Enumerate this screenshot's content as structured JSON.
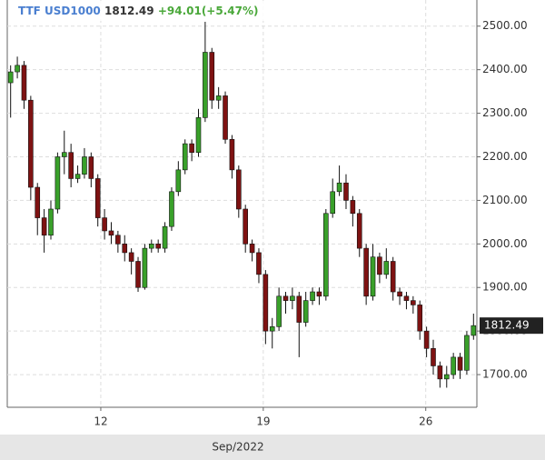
{
  "chart_data": {
    "type": "candlestick",
    "title": "TTF USD1000",
    "change": "+94.01(+5.47%)",
    "x_label": "Sep/2022",
    "open": [
      2370,
      2395,
      2410,
      2330,
      2130,
      2060,
      2020,
      2080,
      2200,
      2210,
      2150,
      2160,
      2200,
      2150,
      2060,
      2030,
      2020,
      2000,
      1980,
      1960,
      1900,
      1990,
      2000,
      1990,
      2040,
      2120,
      2170,
      2230,
      2210,
      2290,
      2440,
      2330,
      2340,
      2240,
      2170,
      2080,
      2000,
      1980,
      1930,
      1800,
      1810,
      1880,
      1870,
      1880,
      1820,
      1870,
      1890,
      1880,
      2070,
      2120,
      2140,
      2100,
      2070,
      1990,
      1880,
      1970,
      1930,
      1960,
      1890,
      1880,
      1870,
      1860,
      1800,
      1760,
      1720,
      1690,
      1700,
      1740,
      1710,
      1790
    ],
    "high": [
      2410,
      2430,
      2420,
      2340,
      2140,
      2080,
      2100,
      2210,
      2260,
      2230,
      2180,
      2220,
      2210,
      2160,
      2080,
      2050,
      2030,
      2020,
      1990,
      1970,
      2000,
      2010,
      2010,
      2050,
      2130,
      2190,
      2240,
      2240,
      2310,
      2510,
      2450,
      2360,
      2350,
      2250,
      2180,
      2090,
      2010,
      1990,
      1940,
      1830,
      1900,
      1890,
      1900,
      1890,
      1890,
      1900,
      1900,
      2080,
      2150,
      2180,
      2160,
      2110,
      2080,
      2000,
      2000,
      1980,
      1990,
      1970,
      1900,
      1890,
      1880,
      1870,
      1810,
      1780,
      1730,
      1720,
      1750,
      1750,
      1800,
      1840
    ],
    "low": [
      2290,
      2380,
      2310,
      2100,
      2020,
      1980,
      2010,
      2070,
      2160,
      2130,
      2140,
      2150,
      2130,
      2040,
      2010,
      2000,
      1980,
      1960,
      1930,
      1890,
      1895,
      1980,
      1980,
      1980,
      2030,
      2110,
      2160,
      2190,
      2200,
      2280,
      2310,
      2310,
      2230,
      2150,
      2060,
      1980,
      1960,
      1910,
      1770,
      1760,
      1800,
      1840,
      1850,
      1740,
      1810,
      1860,
      1860,
      1870,
      2060,
      2110,
      2080,
      2040,
      1970,
      1860,
      1870,
      1910,
      1920,
      1870,
      1860,
      1850,
      1840,
      1780,
      1740,
      1700,
      1670,
      1670,
      1690,
      1690,
      1700,
      1780
    ],
    "close": [
      2395,
      2410,
      2330,
      2130,
      2060,
      2020,
      2080,
      2200,
      2210,
      2150,
      2160,
      2200,
      2150,
      2060,
      2030,
      2020,
      2000,
      1980,
      1960,
      1900,
      1990,
      2000,
      1990,
      2040,
      2120,
      2170,
      2230,
      2210,
      2290,
      2440,
      2330,
      2340,
      2240,
      2170,
      2080,
      2000,
      1980,
      1930,
      1800,
      1810,
      1880,
      1870,
      1880,
      1820,
      1870,
      1890,
      1880,
      2070,
      2120,
      2140,
      2100,
      2070,
      1990,
      1880,
      1970,
      1930,
      1960,
      1890,
      1880,
      1870,
      1860,
      1800,
      1760,
      1720,
      1690,
      1700,
      1740,
      1710,
      1790,
      1812.49
    ],
    "up_color": "#39a02a",
    "down_color": "#7e1212",
    "xlim": [
      -0.5,
      69.5
    ],
    "xticks": [
      {
        "value": 13.44,
        "label": "12"
      },
      {
        "value": 37.66,
        "label": "19"
      },
      {
        "value": 61.88,
        "label": "26"
      }
    ],
    "ylim": [
      1625,
      2560
    ],
    "yticks": [
      {
        "value": 1700,
        "label": "1700.00"
      },
      {
        "value": 1800,
        "label": "1800.00"
      },
      {
        "value": 1900,
        "label": "1900.00"
      },
      {
        "value": 2000,
        "label": "2000.00"
      },
      {
        "value": 2100,
        "label": "2100.00"
      },
      {
        "value": 2200,
        "label": "2200.00"
      },
      {
        "value": 2300,
        "label": "2300.00"
      },
      {
        "value": 2400,
        "label": "2400.00"
      },
      {
        "value": 2500,
        "label": "2500.00"
      }
    ],
    "grid": true
  }
}
